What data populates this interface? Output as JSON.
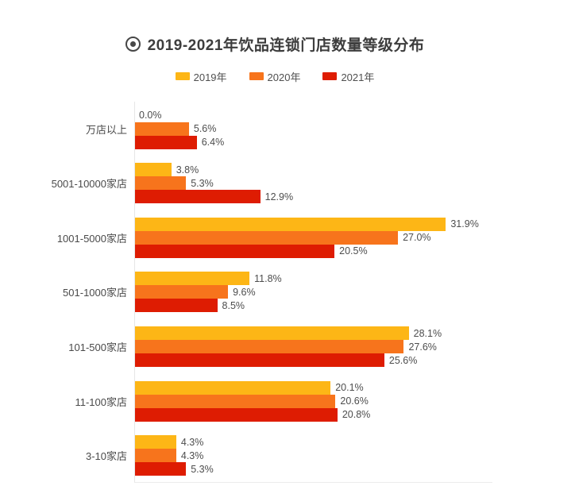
{
  "title": {
    "text": "2019-2021年饮品连锁门店数量等级分布"
  },
  "legend": [
    {
      "label": "2019年",
      "color": "#FDB616"
    },
    {
      "label": "2020年",
      "color": "#F7741C"
    },
    {
      "label": "2021年",
      "color": "#DE1C02"
    }
  ],
  "chart_data": {
    "type": "bar",
    "orientation": "horizontal",
    "title": "2019-2021年饮品连锁门店数量等级分布",
    "categories": [
      "万店以上",
      "5001-10000家店",
      "1001-5000家店",
      "501-1000家店",
      "101-500家店",
      "11-100家店",
      "3-10家店"
    ],
    "series": [
      {
        "name": "2019年",
        "color": "#FDB616",
        "values": [
          0.0,
          3.8,
          31.9,
          11.8,
          28.1,
          20.1,
          4.3
        ]
      },
      {
        "name": "2020年",
        "color": "#F7741C",
        "values": [
          5.6,
          5.3,
          27.0,
          9.6,
          27.6,
          20.6,
          4.3
        ]
      },
      {
        "name": "2021年",
        "color": "#DE1C02",
        "values": [
          6.4,
          12.9,
          20.5,
          8.5,
          25.6,
          20.8,
          5.3
        ]
      }
    ],
    "value_suffix": "%",
    "value_decimals": 1,
    "xlim": [
      0,
      36.7
    ],
    "grid": false,
    "value_labels": "outside-right",
    "legend_position": "top",
    "axis_line_color": "#e7e7e7",
    "text_color": "#4a4a4a"
  }
}
